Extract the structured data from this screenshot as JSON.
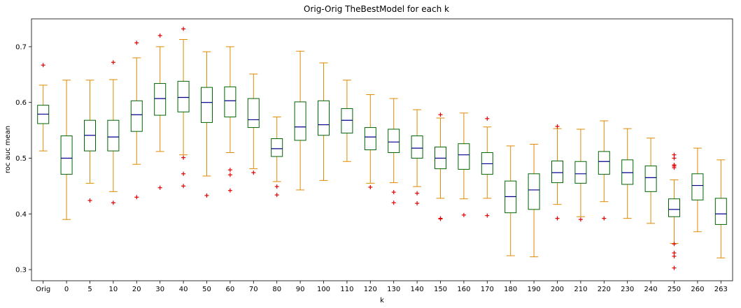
{
  "chart_data": {
    "type": "box",
    "title": "Orig-Orig    TheBestModel for each k",
    "xlabel": "k",
    "ylabel": "roc auc mean",
    "ylim": [
      0.28,
      0.75
    ],
    "yticks": [
      0.3,
      0.4,
      0.5,
      0.6,
      0.7
    ],
    "ytick_labels": [
      "0.3",
      "0.4",
      "0.5",
      "0.6",
      "0.7"
    ],
    "grid": false,
    "colors": {
      "box": "#006400",
      "median": "#00008b",
      "whisker": "#e08a00",
      "flier": "#e00000",
      "frame": "#000000"
    },
    "categories": [
      "Orig",
      "0",
      "5",
      "10",
      "20",
      "30",
      "40",
      "50",
      "60",
      "70",
      "80",
      "90",
      "100",
      "110",
      "120",
      "130",
      "140",
      "150",
      "160",
      "170",
      "180",
      "190",
      "200",
      "210",
      "220",
      "230",
      "240",
      "250",
      "260",
      "263"
    ],
    "boxes": [
      {
        "label": "Orig",
        "whislo": 0.513,
        "q1": 0.562,
        "med": 0.579,
        "q3": 0.595,
        "whishi": 0.631,
        "fliers": [
          0.667
        ]
      },
      {
        "label": "0",
        "whislo": 0.39,
        "q1": 0.471,
        "med": 0.5,
        "q3": 0.54,
        "whishi": 0.64,
        "fliers": []
      },
      {
        "label": "5",
        "whislo": 0.455,
        "q1": 0.513,
        "med": 0.541,
        "q3": 0.568,
        "whishi": 0.64,
        "fliers": [
          0.424
        ]
      },
      {
        "label": "10",
        "whislo": 0.44,
        "q1": 0.513,
        "med": 0.538,
        "q3": 0.568,
        "whishi": 0.641,
        "fliers": [
          0.42,
          0.672
        ]
      },
      {
        "label": "20",
        "whislo": 0.489,
        "q1": 0.548,
        "med": 0.578,
        "q3": 0.603,
        "whishi": 0.68,
        "fliers": [
          0.43,
          0.707
        ]
      },
      {
        "label": "30",
        "whislo": 0.512,
        "q1": 0.577,
        "med": 0.607,
        "q3": 0.634,
        "whishi": 0.7,
        "fliers": [
          0.447,
          0.72
        ]
      },
      {
        "label": "40",
        "whislo": 0.506,
        "q1": 0.583,
        "med": 0.609,
        "q3": 0.638,
        "whishi": 0.713,
        "fliers": [
          0.45,
          0.472,
          0.501,
          0.732
        ]
      },
      {
        "label": "50",
        "whislo": 0.468,
        "q1": 0.564,
        "med": 0.6,
        "q3": 0.627,
        "whishi": 0.691,
        "fliers": [
          0.433
        ]
      },
      {
        "label": "60",
        "whislo": 0.51,
        "q1": 0.574,
        "med": 0.603,
        "q3": 0.628,
        "whishi": 0.7,
        "fliers": [
          0.442,
          0.47,
          0.479
        ]
      },
      {
        "label": "70",
        "whislo": 0.481,
        "q1": 0.555,
        "med": 0.569,
        "q3": 0.607,
        "whishi": 0.651,
        "fliers": [
          0.474
        ]
      },
      {
        "label": "80",
        "whislo": 0.458,
        "q1": 0.503,
        "med": 0.517,
        "q3": 0.535,
        "whishi": 0.574,
        "fliers": [
          0.434,
          0.449
        ]
      },
      {
        "label": "90",
        "whislo": 0.443,
        "q1": 0.532,
        "med": 0.556,
        "q3": 0.601,
        "whishi": 0.692,
        "fliers": []
      },
      {
        "label": "100",
        "whislo": 0.46,
        "q1": 0.541,
        "med": 0.56,
        "q3": 0.603,
        "whishi": 0.671,
        "fliers": []
      },
      {
        "label": "110",
        "whislo": 0.494,
        "q1": 0.545,
        "med": 0.568,
        "q3": 0.589,
        "whishi": 0.64,
        "fliers": []
      },
      {
        "label": "120",
        "whislo": 0.455,
        "q1": 0.515,
        "med": 0.538,
        "q3": 0.555,
        "whishi": 0.614,
        "fliers": [
          0.448
        ]
      },
      {
        "label": "130",
        "whislo": 0.456,
        "q1": 0.51,
        "med": 0.529,
        "q3": 0.552,
        "whishi": 0.607,
        "fliers": [
          0.42,
          0.439
        ]
      },
      {
        "label": "140",
        "whislo": 0.449,
        "q1": 0.5,
        "med": 0.518,
        "q3": 0.54,
        "whishi": 0.587,
        "fliers": [
          0.419,
          0.437
        ]
      },
      {
        "label": "150",
        "whislo": 0.428,
        "q1": 0.481,
        "med": 0.5,
        "q3": 0.52,
        "whishi": 0.572,
        "fliers": [
          0.391,
          0.392,
          0.578
        ]
      },
      {
        "label": "160",
        "whislo": 0.427,
        "q1": 0.48,
        "med": 0.506,
        "q3": 0.526,
        "whishi": 0.581,
        "fliers": [
          0.398
        ]
      },
      {
        "label": "170",
        "whislo": 0.428,
        "q1": 0.471,
        "med": 0.49,
        "q3": 0.51,
        "whishi": 0.556,
        "fliers": [
          0.397,
          0.571
        ]
      },
      {
        "label": "180",
        "whislo": 0.325,
        "q1": 0.402,
        "med": 0.431,
        "q3": 0.459,
        "whishi": 0.522,
        "fliers": []
      },
      {
        "label": "190",
        "whislo": 0.323,
        "q1": 0.408,
        "med": 0.443,
        "q3": 0.472,
        "whishi": 0.525,
        "fliers": []
      },
      {
        "label": "200",
        "whislo": 0.417,
        "q1": 0.456,
        "med": 0.474,
        "q3": 0.495,
        "whishi": 0.553,
        "fliers": [
          0.392,
          0.557
        ]
      },
      {
        "label": "210",
        "whislo": 0.395,
        "q1": 0.455,
        "med": 0.472,
        "q3": 0.494,
        "whishi": 0.552,
        "fliers": [
          0.39
        ]
      },
      {
        "label": "220",
        "whislo": 0.422,
        "q1": 0.471,
        "med": 0.494,
        "q3": 0.512,
        "whishi": 0.567,
        "fliers": [
          0.392
        ]
      },
      {
        "label": "230",
        "whislo": 0.392,
        "q1": 0.453,
        "med": 0.474,
        "q3": 0.497,
        "whishi": 0.553,
        "fliers": []
      },
      {
        "label": "240",
        "whislo": 0.383,
        "q1": 0.44,
        "med": 0.465,
        "q3": 0.486,
        "whishi": 0.536,
        "fliers": []
      },
      {
        "label": "250",
        "whislo": 0.347,
        "q1": 0.395,
        "med": 0.408,
        "q3": 0.427,
        "whishi": 0.461,
        "fliers": [
          0.303,
          0.324,
          0.33,
          0.346,
          0.483,
          0.486,
          0.488,
          0.5,
          0.506
        ]
      },
      {
        "label": "260",
        "whislo": 0.368,
        "q1": 0.425,
        "med": 0.451,
        "q3": 0.472,
        "whishi": 0.518,
        "fliers": []
      },
      {
        "label": "263",
        "whislo": 0.321,
        "q1": 0.381,
        "med": 0.4,
        "q3": 0.428,
        "whishi": 0.497,
        "fliers": []
      }
    ]
  }
}
